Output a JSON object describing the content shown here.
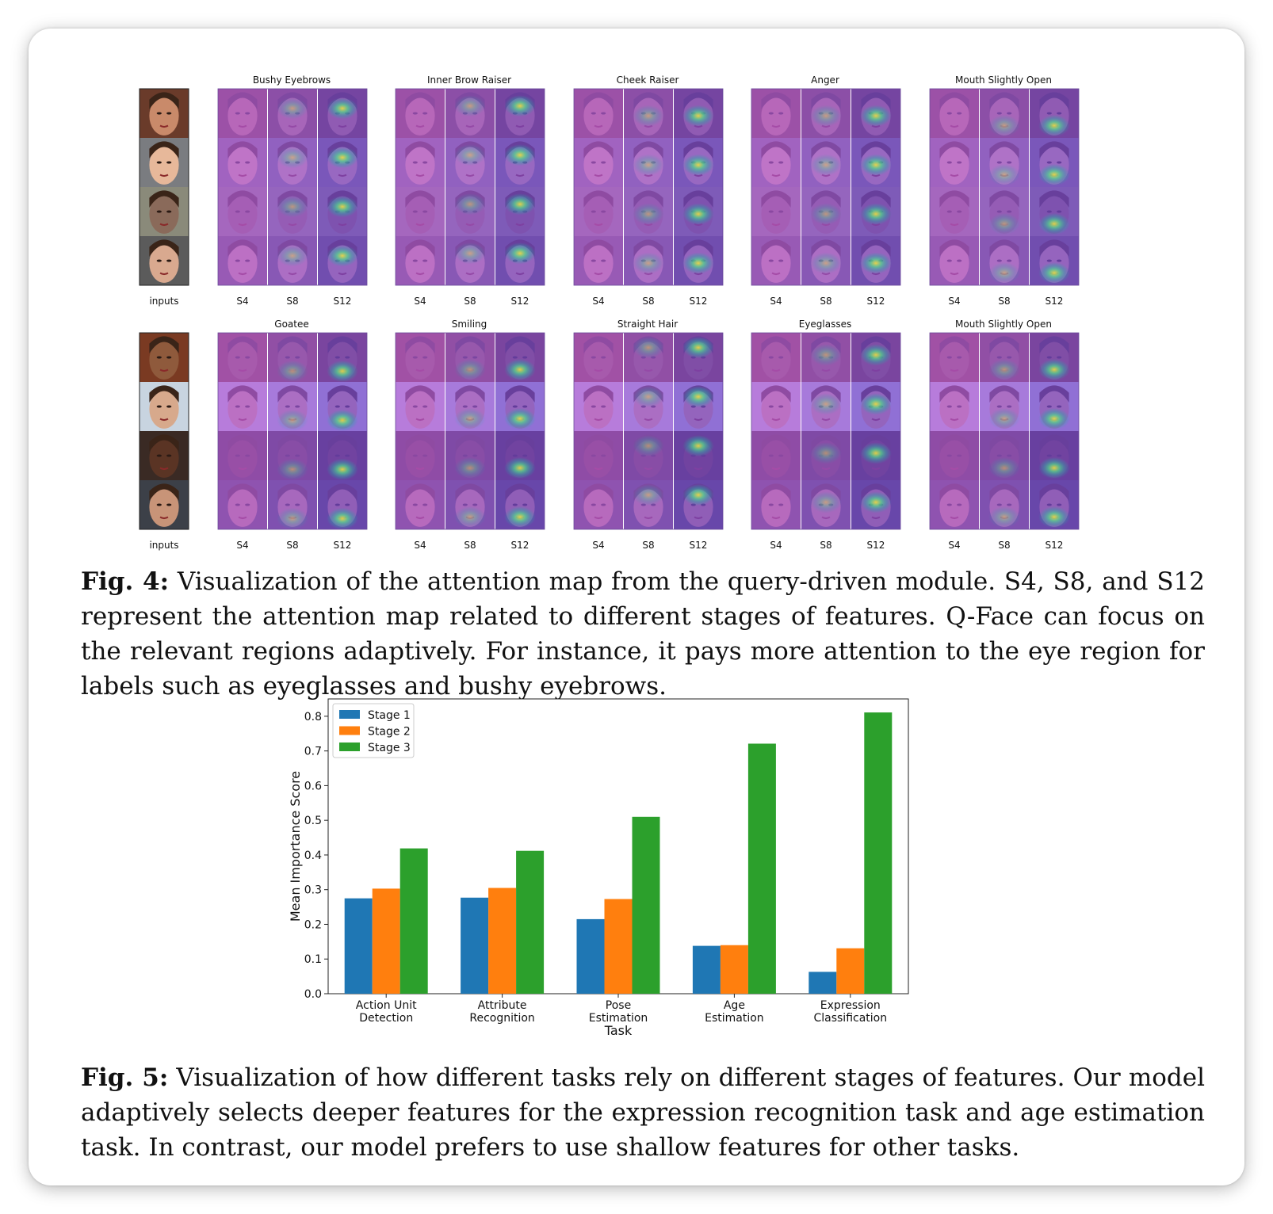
{
  "figure4": {
    "input_label": "inputs",
    "stage_labels": [
      "S4",
      "S8",
      "S12"
    ],
    "rows": [
      {
        "titles": [
          "Bushy Eyebrows",
          "Inner Brow Raiser",
          "Cheek Raiser",
          "Anger",
          "Mouth Slightly Open"
        ]
      },
      {
        "titles": [
          "Goatee",
          "Smiling",
          "Straight Hair",
          "Eyeglasses",
          "Mouth Slightly Open"
        ]
      }
    ],
    "caption_label": "Fig. 4:",
    "caption_text": "Visualization of the attention map from the query-driven module. S4, S8, and S12 represent the attention map related to different stages of features. Q-Face can focus on the relevant regions adaptively. For instance, it pays more attention to the eye region for labels such as eyeglasses and bushy eyebrows."
  },
  "chart_data": {
    "type": "bar",
    "categories": [
      "Action Unit\nDetection",
      "Attribute\nRecognition",
      "Pose\nEstimation",
      "Age\nEstimation",
      "Expression\nClassification"
    ],
    "series": [
      {
        "name": "Stage 1",
        "color": "#1f77b4",
        "values": [
          0.275,
          0.277,
          0.215,
          0.138,
          0.063
        ]
      },
      {
        "name": "Stage 2",
        "color": "#ff7f0e",
        "values": [
          0.303,
          0.305,
          0.273,
          0.14,
          0.131
        ]
      },
      {
        "name": "Stage 3",
        "color": "#2ca02c",
        "values": [
          0.419,
          0.412,
          0.51,
          0.721,
          0.811
        ]
      }
    ],
    "xlabel": "Task",
    "ylabel": "Mean Importance Score",
    "ylim": [
      0,
      0.85
    ],
    "yticks": [
      "0.0",
      "0.1",
      "0.2",
      "0.3",
      "0.4",
      "0.5",
      "0.6",
      "0.7",
      "0.8"
    ],
    "legend_position": "top-left",
    "grid": false
  },
  "figure5": {
    "caption_label": "Fig. 5:",
    "caption_text": "Visualization of how different tasks rely on different stages of features. Our model adaptively selects deeper features for the expression recognition task and age estimation task. In contrast, our model prefers to use shallow features for other tasks."
  }
}
